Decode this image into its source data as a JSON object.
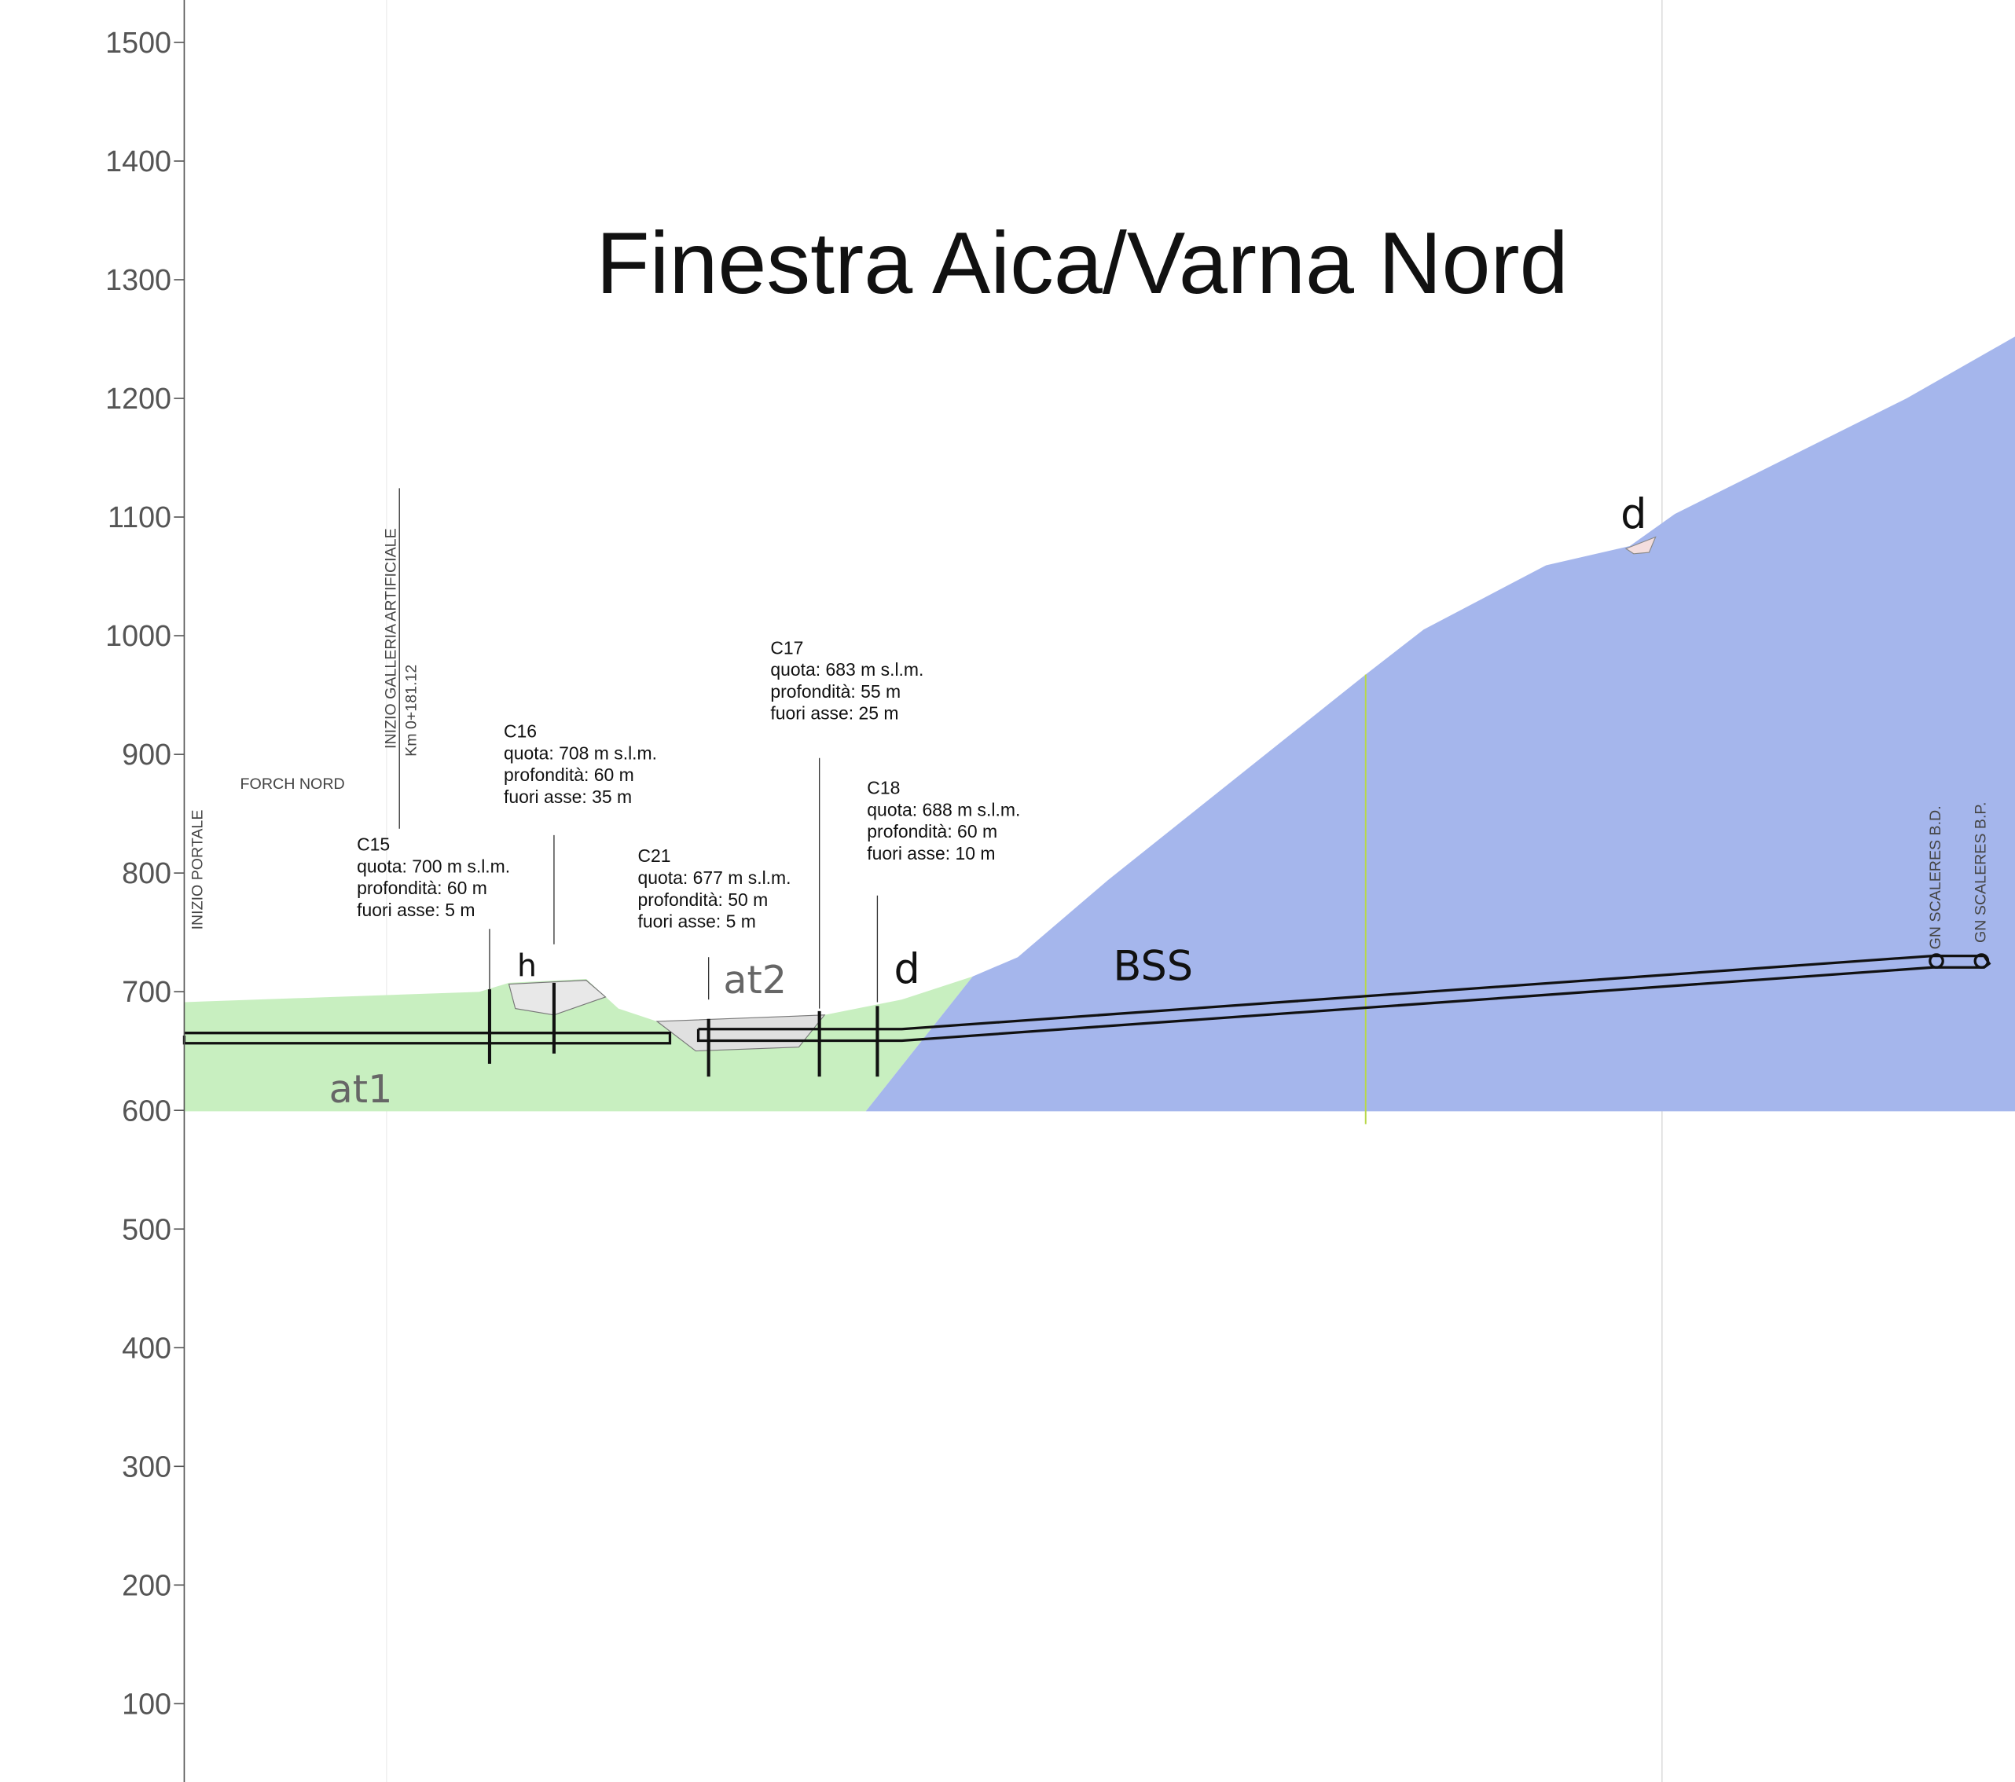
{
  "title": "Finestra Aica/Varna Nord",
  "axis": {
    "ticks": [
      100,
      200,
      300,
      400,
      500,
      600,
      700,
      800,
      900,
      1000,
      1100,
      1200,
      1300,
      1400,
      1500
    ]
  },
  "labels": {
    "inizio_portale": "INIZIO PORTALE",
    "forch_nord": "FORCH NORD",
    "inizio_galleria": "INIZIO GALLERIA ARTIFICIALE",
    "km": "Km 0+181.12",
    "gn_bd": "GN SCALERES B.D.",
    "gn_bp": "GN SCALERES B.P."
  },
  "units": [
    "at1",
    "at2",
    "h",
    "d",
    "d",
    "BSS"
  ],
  "boreholes": [
    {
      "name": "C15",
      "lines": [
        "quota: 700 m s.l.m.",
        "profondità: 60 m",
        "fuori asse:  5 m"
      ]
    },
    {
      "name": "C16",
      "lines": [
        "quota: 708 m s.l.m.",
        "profondità: 60 m",
        "fuori asse:  35 m"
      ]
    },
    {
      "name": "C21",
      "lines": [
        "quota: 677 m s.l.m.",
        "profondità: 50 m",
        "fuori asse: 5 m"
      ]
    },
    {
      "name": "C17",
      "lines": [
        "quota: 683 m s.l.m.",
        "profondità: 55 m",
        "fuori asse: 25 m"
      ]
    },
    {
      "name": "C18",
      "lines": [
        "quota: 688 m s.l.m.",
        "profondità: 60 m",
        "fuori asse: 10 m"
      ]
    }
  ]
}
